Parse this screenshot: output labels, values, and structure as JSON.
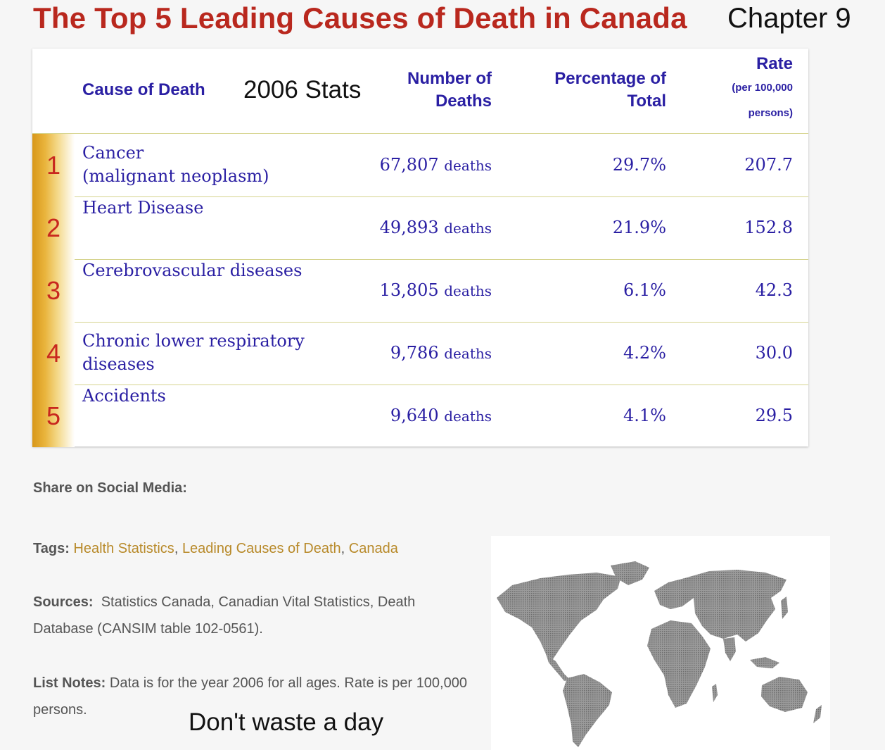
{
  "header": {
    "title": "The Top 5 Leading Causes of Death in Canada",
    "chapter": "Chapter 9",
    "stats_label": "2006 Stats"
  },
  "table": {
    "columns": {
      "cause": "Cause of Death",
      "number_line1": "Number of",
      "number_line2": "Deaths",
      "pct_line1": "Percentage of",
      "pct_line2": "Total",
      "rate": "Rate",
      "rate_sub1": "(per 100,000",
      "rate_sub2": "persons)"
    },
    "rows": [
      {
        "rank": "1",
        "cause_line1": "Cancer",
        "cause_line2": "(malignant neoplasm)",
        "number": "67,807",
        "unit": "deaths",
        "percentage": "29.7%",
        "rate": "207.7"
      },
      {
        "rank": "2",
        "cause": "Heart Disease",
        "number": "49,893",
        "unit": "deaths",
        "percentage": "21.9%",
        "rate": "152.8"
      },
      {
        "rank": "3",
        "cause": "Cerebrovascular diseases",
        "number": "13,805",
        "unit": "deaths",
        "percentage": "6.1%",
        "rate": "42.3"
      },
      {
        "rank": "4",
        "cause_line1": "Chronic lower respiratory",
        "cause_line2": "diseases",
        "number": "9,786",
        "unit": "deaths",
        "percentage": "4.2%",
        "rate": "30.0"
      },
      {
        "rank": "5",
        "cause": "Accidents",
        "number": "9,640",
        "unit": "deaths",
        "percentage": "4.1%",
        "rate": "29.5"
      }
    ]
  },
  "footer": {
    "share_label": "Share on Social Media:",
    "tags_label": "Tags:",
    "tags": [
      "Health Statistics",
      "Leading Causes of Death",
      "Canada"
    ],
    "tag_separator": ",",
    "sources_label": "Sources:",
    "sources_text": "Statistics Canada, Canadian Vital Statistics, Death Database (CANSIM table 102-0561).",
    "notes_label": "List Notes:",
    "notes_text": "Data is for the year 2006 for all ages. Rate is per 100,000 persons.",
    "motto": "Don't waste a day"
  },
  "colors": {
    "title": "#b9281e",
    "header_text": "#2a1fa3",
    "rank_gold": "#e0a52a",
    "tag_link": "#b88a2a",
    "map_land": "#8f8f8f"
  }
}
